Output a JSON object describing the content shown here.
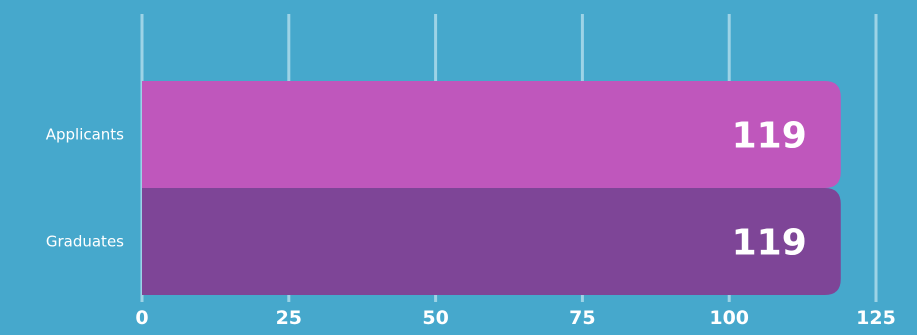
{
  "colors": {
    "background": "#46A8CC",
    "gridline": "#9DD3E6",
    "text": "#FFFFFF"
  },
  "chart_data": {
    "type": "bar",
    "orientation": "horizontal",
    "categories": [
      "Applicants",
      "Graduates"
    ],
    "values": [
      119,
      119
    ],
    "bar_colors": [
      "#BF57BC",
      "#7E4597"
    ],
    "xlim": [
      0,
      125
    ],
    "xticks": [
      0,
      25,
      50,
      75,
      100,
      125
    ],
    "grid": true,
    "legend": "none",
    "title": "",
    "xlabel": "",
    "ylabel": ""
  }
}
